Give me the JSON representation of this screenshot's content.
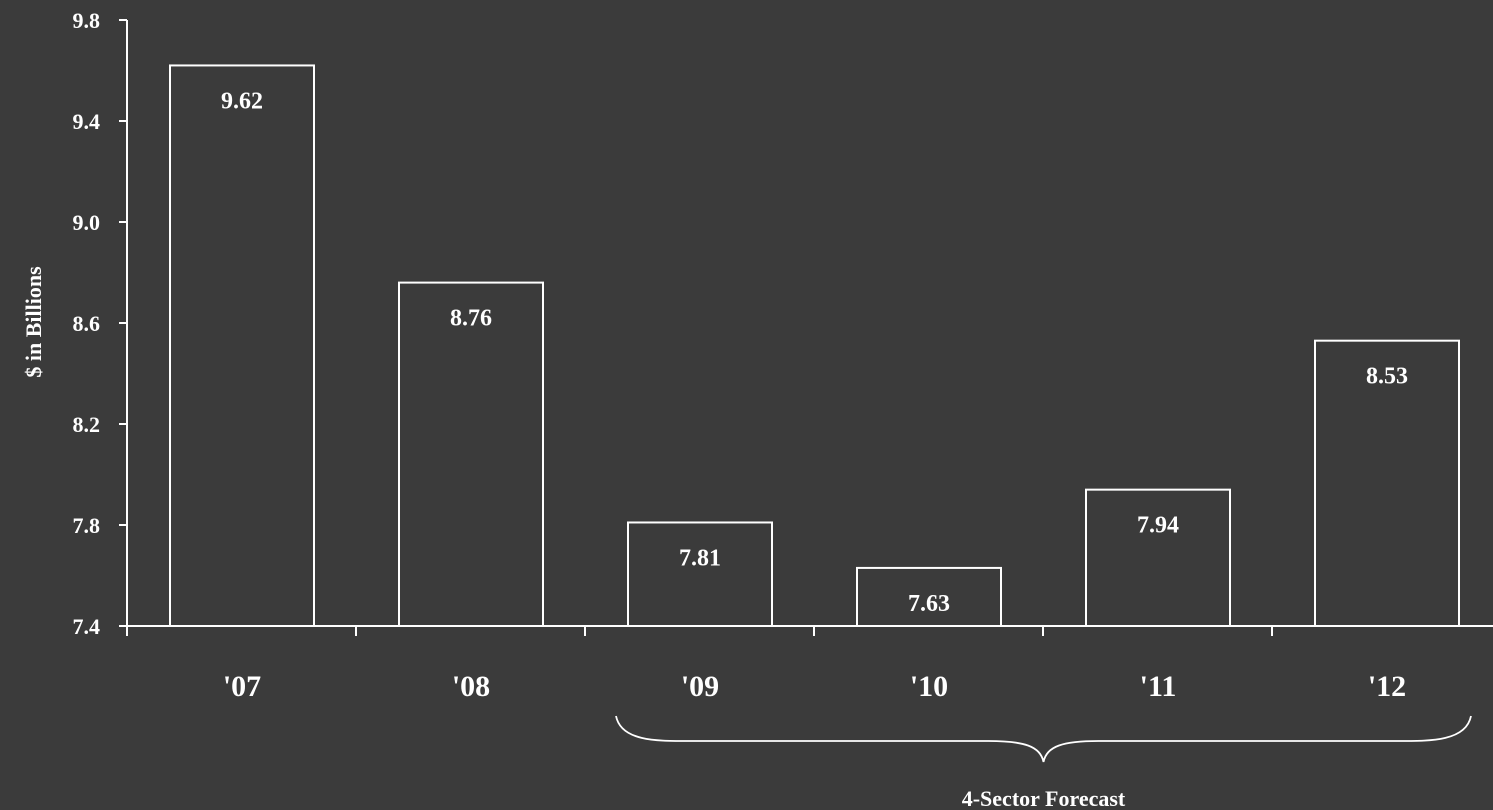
{
  "chart_data": {
    "type": "bar",
    "categories": [
      "'07",
      "'08",
      "'09",
      "'10",
      "'11",
      "'12"
    ],
    "values": [
      9.62,
      8.76,
      7.81,
      7.63,
      7.94,
      8.53
    ],
    "value_labels": [
      "9.62",
      "8.76",
      "7.81",
      "7.63",
      "7.94",
      "8.53"
    ],
    "ylabel": "$ in Billions",
    "ylim": [
      7.4,
      9.8
    ],
    "yticks": [
      "7.4",
      "7.8",
      "8.2",
      "8.6",
      "9.0",
      "9.4",
      "9.8"
    ],
    "grid": false,
    "annotation": {
      "text": "4-Sector Forecast",
      "from_category": "'09",
      "to_category": "'12"
    }
  },
  "colors": {
    "background": "#3b3b3b",
    "bar_fill": "#3b3b3b",
    "bar_stroke": "#ffffff",
    "text": "#ffffff"
  }
}
